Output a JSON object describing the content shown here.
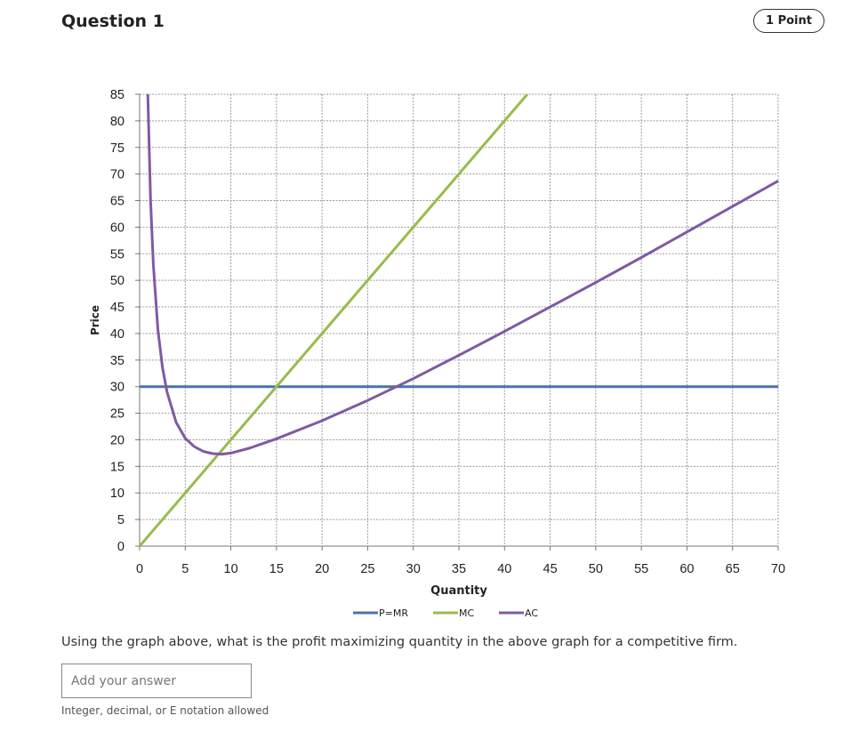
{
  "question": {
    "title": "Question 1",
    "points": "1 Point"
  },
  "chart_data": {
    "type": "line",
    "xlabel": "Quantity",
    "ylabel": "Price",
    "xlim": [
      0,
      70
    ],
    "ylim": [
      0,
      85
    ],
    "xticks": [
      0,
      5,
      10,
      15,
      20,
      25,
      30,
      35,
      40,
      45,
      50,
      55,
      60,
      65,
      70
    ],
    "yticks": [
      0,
      5,
      10,
      15,
      20,
      25,
      30,
      35,
      40,
      45,
      50,
      55,
      60,
      65,
      70,
      75,
      80,
      85
    ],
    "grid": true,
    "legend_position": "bottom",
    "series": [
      {
        "name": "P=MR",
        "color": "#4a72b0",
        "x": [
          0,
          70
        ],
        "y": [
          30,
          30
        ]
      },
      {
        "name": "MC",
        "color": "#98bb4e",
        "x": [
          0,
          42.5
        ],
        "y": [
          0,
          85
        ]
      },
      {
        "name": "AC",
        "color": "#7f5aa2",
        "x": [
          0.9,
          1.2,
          1.5,
          2,
          2.5,
          3,
          4,
          5,
          6,
          7,
          8,
          9,
          10,
          12,
          15,
          20,
          25,
          30,
          35,
          40,
          45,
          50,
          55,
          60,
          65,
          70
        ],
        "y": [
          85,
          65,
          53,
          40.8,
          33.7,
          29,
          23.3,
          20.3,
          18.7,
          17.8,
          17.4,
          17.3,
          17.5,
          18.4,
          20.2,
          23.6,
          27.4,
          31.5,
          35.9,
          40.4,
          45,
          49.6,
          54.3,
          59.1,
          63.9,
          68.7
        ]
      }
    ]
  },
  "prompt": "Using the graph above, what is the profit maximizing quantity in the above graph for a competitive firm.",
  "answer": {
    "value": "",
    "placeholder": "Add your answer"
  },
  "hint": "Integer, decimal, or E notation allowed"
}
